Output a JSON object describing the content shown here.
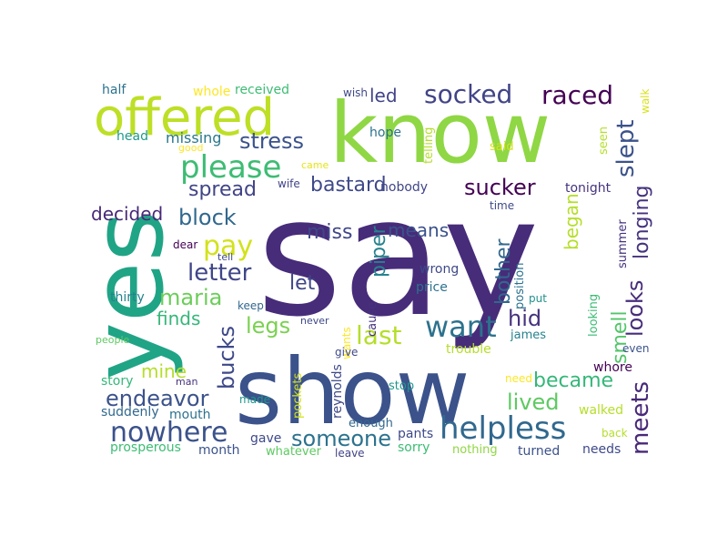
{
  "words": [
    {
      "text": "say",
      "color": "#472c7a"
    },
    {
      "text": "know",
      "color": "#8fd744"
    },
    {
      "text": "yes",
      "color": "#20a486"
    },
    {
      "text": "show",
      "color": "#3b528b"
    },
    {
      "text": "offered",
      "color": "#bddf26"
    },
    {
      "text": "please",
      "color": "#3dbc74"
    },
    {
      "text": "helpless",
      "color": "#31688e"
    },
    {
      "text": "want",
      "color": "#2c728e"
    },
    {
      "text": "raced",
      "color": "#440154"
    },
    {
      "text": "socked",
      "color": "#414487"
    },
    {
      "text": "stress",
      "color": "#3b528b"
    },
    {
      "text": "nowhere",
      "color": "#3b528b"
    },
    {
      "text": "last",
      "color": "#b5de2b"
    },
    {
      "text": "endeavor",
      "color": "#3b528b"
    },
    {
      "text": "someone",
      "color": "#2c728e"
    },
    {
      "text": "block",
      "color": "#31688e"
    },
    {
      "text": "sucker",
      "color": "#440154"
    },
    {
      "text": "meets",
      "color": "#482878"
    },
    {
      "text": "bastard",
      "color": "#3e4989"
    },
    {
      "text": "spread",
      "color": "#414487"
    },
    {
      "text": "letter",
      "color": "#404688"
    },
    {
      "text": "maria",
      "color": "#6ccd5a"
    },
    {
      "text": "pay",
      "color": "#d2e21b"
    },
    {
      "text": "became",
      "color": "#35b779"
    },
    {
      "text": "lived",
      "color": "#5ec962"
    },
    {
      "text": "slept",
      "color": "#3b528b"
    },
    {
      "text": "looks",
      "color": "#472d7b"
    },
    {
      "text": "longing",
      "color": "#46337e"
    },
    {
      "text": "bucks",
      "color": "#3e4989"
    },
    {
      "text": "legs",
      "color": "#7ad151"
    },
    {
      "text": "means",
      "color": "#3b528b"
    },
    {
      "text": "miss",
      "color": "#404688"
    },
    {
      "text": "piper",
      "color": "#26828e"
    },
    {
      "text": "bother",
      "color": "#31688e"
    },
    {
      "text": "smell",
      "color": "#52c569"
    },
    {
      "text": "hid",
      "color": "#46337e"
    },
    {
      "text": "led",
      "color": "#414487"
    },
    {
      "text": "let",
      "color": "#404688"
    },
    {
      "text": "began",
      "color": "#b5de2b"
    },
    {
      "text": "decided",
      "color": "#482878"
    },
    {
      "text": "finds",
      "color": "#35b779"
    },
    {
      "text": "mine",
      "color": "#b5de2b"
    },
    {
      "text": "missing",
      "color": "#2a788e"
    },
    {
      "text": "received",
      "color": "#3dbc74"
    },
    {
      "text": "whole",
      "color": "#fde725"
    },
    {
      "text": "half",
      "color": "#2c728e"
    },
    {
      "text": "head",
      "color": "#1f988b"
    },
    {
      "text": "wish",
      "color": "#3e4989"
    },
    {
      "text": "hope",
      "color": "#2c728e"
    },
    {
      "text": "nobody",
      "color": "#404688"
    },
    {
      "text": "tonight",
      "color": "#46337e"
    },
    {
      "text": "wife",
      "color": "#414487"
    },
    {
      "text": "came",
      "color": "#e5e419"
    },
    {
      "text": "good",
      "color": "#fde725"
    },
    {
      "text": "seen",
      "color": "#b5de2b"
    },
    {
      "text": "walk",
      "color": "#d8e219"
    },
    {
      "text": "said",
      "color": "#d8e219"
    },
    {
      "text": "telling",
      "color": "#b5de2b"
    },
    {
      "text": "time",
      "color": "#3e4989"
    },
    {
      "text": "dear",
      "color": "#440154"
    },
    {
      "text": "tell",
      "color": "#3e4989"
    },
    {
      "text": "keep",
      "color": "#31688e"
    },
    {
      "text": "thirty",
      "color": "#26828e"
    },
    {
      "text": "wrong",
      "color": "#3e4989"
    },
    {
      "text": "price",
      "color": "#2c728e"
    },
    {
      "text": "cause",
      "color": "#46337e"
    },
    {
      "text": "position",
      "color": "#2c728e"
    },
    {
      "text": "put",
      "color": "#21918c"
    },
    {
      "text": "summer",
      "color": "#46337e"
    },
    {
      "text": "never",
      "color": "#3e4989"
    },
    {
      "text": "wants",
      "color": "#fde725"
    },
    {
      "text": "give",
      "color": "#3e4989"
    },
    {
      "text": "trouble",
      "color": "#b5de2b"
    },
    {
      "text": "james",
      "color": "#26828e"
    },
    {
      "text": "looking",
      "color": "#3dbc74"
    },
    {
      "text": "whore",
      "color": "#440154"
    },
    {
      "text": "even",
      "color": "#3b528b"
    },
    {
      "text": "people",
      "color": "#5ec962"
    },
    {
      "text": "story",
      "color": "#35b779"
    },
    {
      "text": "man",
      "color": "#46337e"
    },
    {
      "text": "made",
      "color": "#1f988b"
    },
    {
      "text": "mouth",
      "color": "#2c728e"
    },
    {
      "text": "suddenly",
      "color": "#31688e"
    },
    {
      "text": "pockets",
      "color": "#d2e21b"
    },
    {
      "text": "reynolds",
      "color": "#3e4989"
    },
    {
      "text": "stop",
      "color": "#1f988b"
    },
    {
      "text": "need",
      "color": "#fde725"
    },
    {
      "text": "walked",
      "color": "#b5de2b"
    },
    {
      "text": "back",
      "color": "#b5de2b"
    },
    {
      "text": "gave",
      "color": "#3e4989"
    },
    {
      "text": "enough",
      "color": "#31688e"
    },
    {
      "text": "pants",
      "color": "#3e4989"
    },
    {
      "text": "sorry",
      "color": "#3dbc74"
    },
    {
      "text": "prosperous",
      "color": "#3dbc74"
    },
    {
      "text": "month",
      "color": "#3b528b"
    },
    {
      "text": "whatever",
      "color": "#5ec962"
    },
    {
      "text": "leave",
      "color": "#414487"
    },
    {
      "text": "nothing",
      "color": "#8fd744"
    },
    {
      "text": "turned",
      "color": "#3b528b"
    },
    {
      "text": "needs",
      "color": "#3e4989"
    }
  ]
}
